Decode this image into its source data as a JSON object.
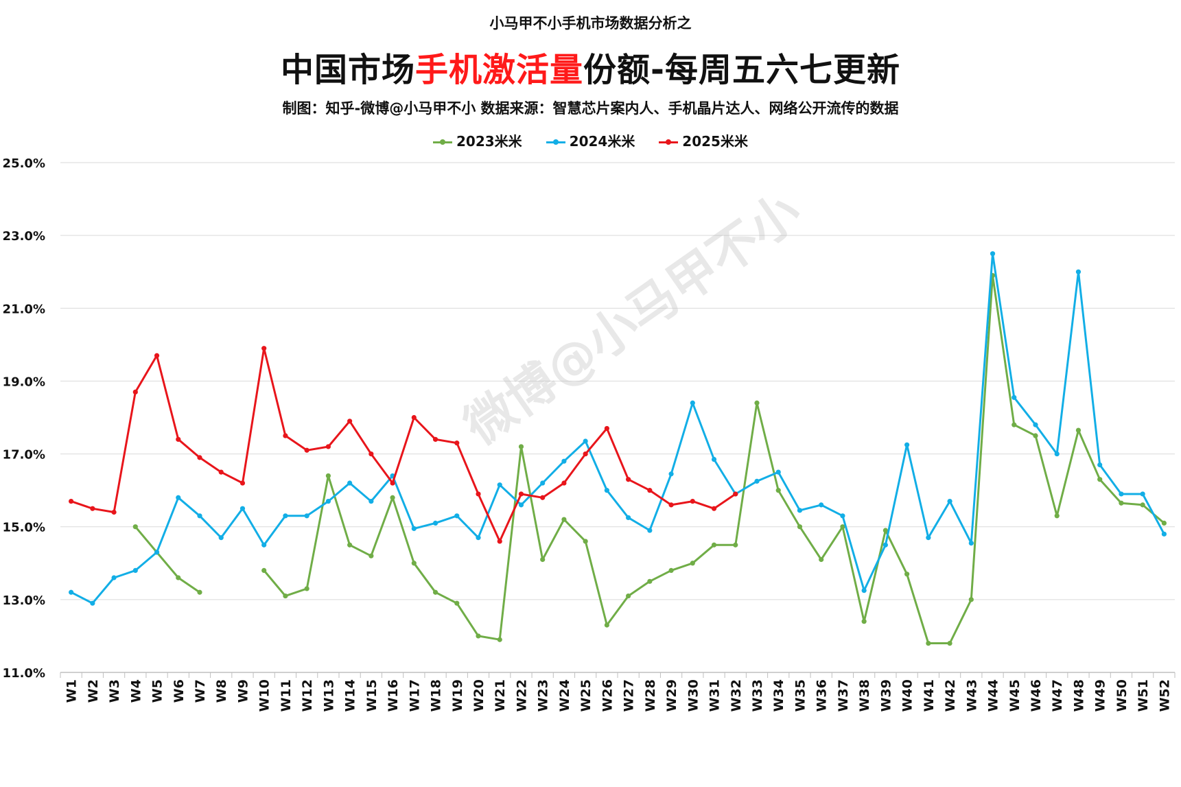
{
  "header": {
    "pre_title": "小马甲不小手机市场数据分析之",
    "title_part1": "中国市场",
    "title_highlight": "手机激活量",
    "title_part2": "份额-每周五六七更新",
    "subtitle": "制图：知乎-微博@小马甲不小  数据来源：智慧芯片案内人、手机晶片达人、网络公开流传的数据"
  },
  "watermark": "微博@小马甲不小",
  "colors": {
    "series_2023": "#70ad47",
    "series_2024": "#12aee6",
    "series_2025": "#e8151b",
    "highlight": "#ff1a1a",
    "grid": "#d9d9d9"
  },
  "chart_data": {
    "type": "line",
    "title": "中国市场手机激活量份额-每周五六七更新",
    "xlabel": "",
    "ylabel": "",
    "ylim": [
      11.0,
      25.0
    ],
    "yticks": [
      "11.0%",
      "13.0%",
      "15.0%",
      "17.0%",
      "19.0%",
      "21.0%",
      "23.0%",
      "25.0%"
    ],
    "grid": true,
    "legend_position": "top-center",
    "categories": [
      "W1",
      "W2",
      "W3",
      "W4",
      "W5",
      "W6",
      "W7",
      "W8",
      "W9",
      "W10",
      "W11",
      "W12",
      "W13",
      "W14",
      "W15",
      "W16",
      "W17",
      "W18",
      "W19",
      "W20",
      "W21",
      "W22",
      "W23",
      "W24",
      "W25",
      "W26",
      "W27",
      "W28",
      "W29",
      "W30",
      "W31",
      "W32",
      "W33",
      "W34",
      "W35",
      "W36",
      "W37",
      "W38",
      "W39",
      "W40",
      "W41",
      "W42",
      "W43",
      "W44",
      "W45",
      "W46",
      "W47",
      "W48",
      "W49",
      "W50",
      "W51",
      "W52"
    ],
    "series": [
      {
        "name": "2023米米",
        "color": "#70ad47",
        "values": [
          null,
          null,
          null,
          15.0,
          14.3,
          13.6,
          13.2,
          null,
          null,
          13.8,
          13.1,
          13.3,
          16.4,
          14.5,
          14.2,
          15.8,
          14.0,
          13.2,
          12.9,
          12.0,
          11.9,
          17.2,
          14.1,
          15.2,
          14.6,
          12.3,
          13.1,
          13.5,
          13.8,
          14.0,
          14.5,
          14.5,
          18.4,
          16.0,
          15.0,
          14.1,
          15.0,
          12.4,
          14.9,
          13.7,
          11.8,
          11.8,
          13.0,
          21.9,
          17.8,
          17.5,
          15.3,
          17.65,
          16.3,
          15.65,
          15.6,
          15.1
        ]
      },
      {
        "name": "2024米米",
        "color": "#12aee6",
        "values": [
          13.2,
          12.9,
          13.6,
          13.8,
          14.3,
          15.8,
          15.3,
          14.7,
          15.5,
          14.5,
          15.3,
          15.3,
          15.7,
          16.2,
          15.7,
          16.4,
          14.95,
          15.1,
          15.3,
          14.7,
          16.15,
          15.6,
          16.2,
          16.8,
          17.35,
          16.0,
          15.25,
          14.9,
          16.45,
          18.4,
          16.85,
          15.9,
          16.25,
          16.5,
          15.45,
          15.6,
          15.3,
          13.25,
          14.5,
          17.25,
          14.7,
          15.7,
          14.55,
          22.5,
          18.55,
          17.8,
          17.0,
          22.0,
          16.7,
          15.9,
          15.9,
          14.8
        ]
      },
      {
        "name": "2025米米",
        "color": "#e8151b",
        "values": [
          15.7,
          15.5,
          15.4,
          18.7,
          19.7,
          17.4,
          16.9,
          16.5,
          16.2,
          19.9,
          17.5,
          17.1,
          17.2,
          17.9,
          17.0,
          16.2,
          18.0,
          17.4,
          17.3,
          15.9,
          14.6,
          15.9,
          15.8,
          16.2,
          17.0,
          17.7,
          16.3,
          16.0,
          15.6,
          15.7,
          15.5,
          15.9,
          null,
          null,
          null,
          null,
          null,
          null,
          null,
          null,
          null,
          null,
          null,
          null,
          null,
          null,
          null,
          null,
          null,
          null,
          null,
          null
        ]
      }
    ]
  }
}
